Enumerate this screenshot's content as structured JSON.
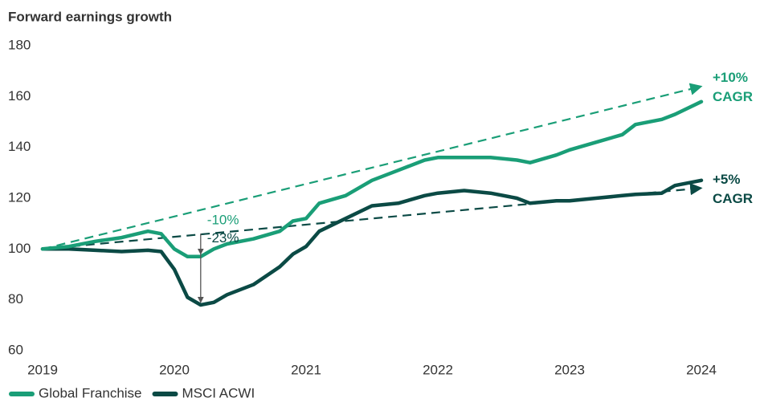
{
  "chart_data": {
    "type": "line",
    "title": "Forward earnings growth",
    "x": [
      2019,
      2019.2,
      2019.4,
      2019.6,
      2019.8,
      2019.9,
      2020.0,
      2020.1,
      2020.2,
      2020.3,
      2020.4,
      2020.6,
      2020.8,
      2020.9,
      2021.0,
      2021.1,
      2021.3,
      2021.5,
      2021.7,
      2021.9,
      2022.0,
      2022.2,
      2022.4,
      2022.6,
      2022.7,
      2022.9,
      2023.0,
      2023.2,
      2023.4,
      2023.5,
      2023.7,
      2023.8,
      2024.0
    ],
    "series": [
      {
        "name": "Global Franchise",
        "color": "#1a9e77",
        "values": [
          100,
          101,
          103,
          104.5,
          107,
          106,
          100,
          97,
          97,
          100,
          102,
          104,
          107,
          111,
          112,
          118,
          121,
          127,
          131,
          135,
          136,
          136,
          136,
          135,
          134,
          137,
          139,
          142,
          145,
          149,
          151,
          153,
          158
        ]
      },
      {
        "name": "MSCI ACWI",
        "color": "#0b4a45",
        "values": [
          100,
          100,
          99.5,
          99,
          99.5,
          99,
          92,
          81,
          78,
          79,
          82,
          86,
          93,
          98,
          101,
          107,
          112,
          117,
          118,
          121,
          122,
          123,
          122,
          120,
          118,
          119,
          119,
          120,
          121,
          121.5,
          122,
          125,
          127
        ]
      }
    ],
    "trendlines": [
      {
        "color": "#1a9e77",
        "x": [
          2019,
          2024
        ],
        "values": [
          100,
          164
        ],
        "label": [
          "+10%",
          "CAGR"
        ]
      },
      {
        "color": "#0b4a45",
        "x": [
          2019,
          2024
        ],
        "values": [
          100,
          124
        ],
        "label": [
          "+5%",
          "CAGR"
        ]
      }
    ],
    "annotations": [
      {
        "text": "-10%",
        "color": "#1a9e77",
        "x": 2020.2,
        "from": 107,
        "to": 97
      },
      {
        "text": "-23%",
        "color": "#0b4a45",
        "x": 2020.2,
        "from": 100,
        "to": 78
      }
    ],
    "xlim": [
      2019,
      2024
    ],
    "xticks": [
      2019,
      2020,
      2021,
      2022,
      2023,
      2024
    ],
    "ylim": [
      60,
      180
    ],
    "yticks": [
      60,
      80,
      100,
      120,
      140,
      160,
      180
    ],
    "grid": false
  }
}
